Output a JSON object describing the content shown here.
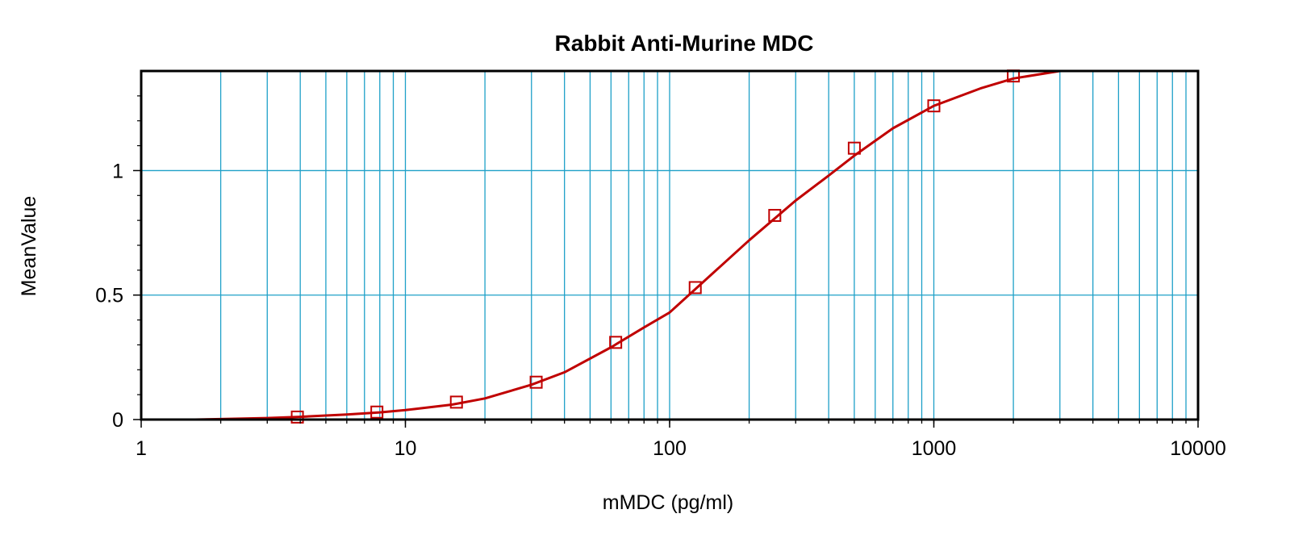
{
  "chart_data": {
    "type": "scatter",
    "title": "Rabbit Anti-Murine MDC",
    "xlabel": "mMDC (pg/ml)",
    "ylabel": "MeanValue",
    "x_scale": "log",
    "xlim": [
      1,
      10000
    ],
    "ylim": [
      0,
      1.4
    ],
    "x_ticks": [
      1,
      10,
      100,
      1000,
      10000
    ],
    "x_tick_labels": [
      "1",
      "10",
      "100",
      "1000",
      "10000"
    ],
    "y_ticks": [
      0,
      0.5,
      1
    ],
    "y_tick_labels": [
      "0",
      "0.5",
      "1"
    ],
    "grid": true,
    "colors": {
      "series": "#c00000",
      "grid": "#1ea0c8",
      "frame": "#000000"
    },
    "series": [
      {
        "marker": "square",
        "x": [
          3.9,
          7.8,
          15.6,
          31.25,
          62.5,
          125,
          250,
          500,
          1000,
          2000
        ],
        "y": [
          0.01,
          0.03,
          0.07,
          0.15,
          0.31,
          0.53,
          0.82,
          1.09,
          1.26,
          1.38
        ]
      }
    ],
    "fit_curve": {
      "x": [
        1.6,
        2,
        3,
        4,
        6,
        8,
        10,
        15,
        20,
        30,
        40,
        60,
        80,
        100,
        150,
        200,
        300,
        400,
        500,
        700,
        1000,
        1500,
        2000,
        3000
      ],
      "y": [
        0.0,
        0.002,
        0.006,
        0.011,
        0.02,
        0.029,
        0.038,
        0.06,
        0.085,
        0.14,
        0.19,
        0.29,
        0.37,
        0.43,
        0.6,
        0.72,
        0.88,
        0.98,
        1.06,
        1.17,
        1.26,
        1.33,
        1.37,
        1.4
      ]
    }
  }
}
